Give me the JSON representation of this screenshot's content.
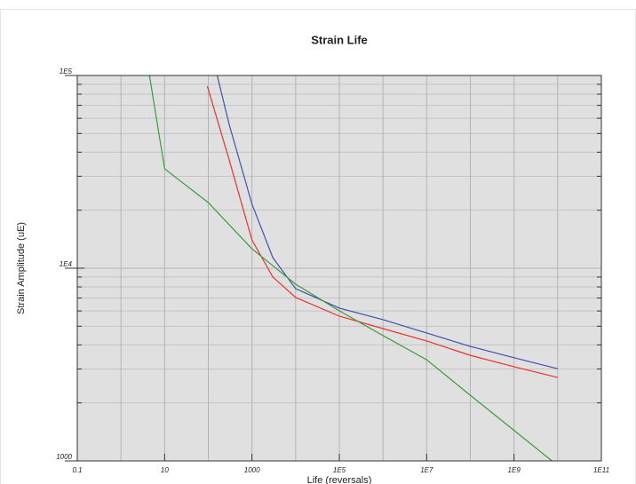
{
  "chart_data": {
    "type": "line",
    "title": "Strain Life",
    "xlabel": "Life (reversals)",
    "ylabel": "Strain Amplitude (uE)",
    "xlog": true,
    "ylog": true,
    "grid": true,
    "xlim": [
      0.1,
      100000000000
    ],
    "ylim": [
      1000,
      100000
    ],
    "xticks": [
      0.1,
      10,
      1000,
      {
        "value": 100000,
        "label": "1E5"
      },
      {
        "value": 10000000,
        "label": "1E7"
      },
      {
        "value": 1000000000,
        "label": "1E9"
      },
      {
        "value": 100000000000,
        "label": "1E11"
      }
    ],
    "xminorticks": [
      1,
      100,
      10000,
      1000000,
      100000000,
      10000000000
    ],
    "yticks": [
      1000,
      {
        "value": 10000,
        "label": "1E4"
      },
      {
        "value": 100000,
        "label": "1E5"
      }
    ],
    "yminorticks": [
      2000,
      3000,
      4000,
      5000,
      6000,
      7000,
      8000,
      9000,
      20000,
      30000,
      40000,
      50000,
      60000,
      70000,
      80000,
      90000
    ],
    "series": [
      {
        "color": "#3f4fb0",
        "x": [
          160,
          300,
          1000,
          3000,
          10000,
          100000,
          1000000,
          10000000,
          100000000,
          1000000000,
          10000000000
        ],
        "values": [
          100000,
          55800,
          21500,
          11350,
          7830,
          6210,
          5410,
          4610,
          3930,
          3430,
          3010
        ]
      },
      {
        "color": "#e8332f",
        "x": [
          95,
          300,
          1000,
          3000,
          10000,
          100000,
          1000000,
          10000000,
          100000000,
          1000000000,
          10000000000
        ],
        "values": [
          88000,
          36500,
          14000,
          9000,
          7050,
          5640,
          4860,
          4190,
          3530,
          3080,
          2710
        ]
      },
      {
        "color": "#3c9a3c",
        "x": [
          4.5,
          10,
          100,
          1000,
          10000,
          100000,
          1000000,
          10000000,
          100000000,
          1000000000,
          7400000000
        ],
        "values": [
          100000,
          32800,
          21900,
          12600,
          8260,
          6010,
          4470,
          3350,
          2190,
          1440,
          1000
        ]
      }
    ]
  }
}
